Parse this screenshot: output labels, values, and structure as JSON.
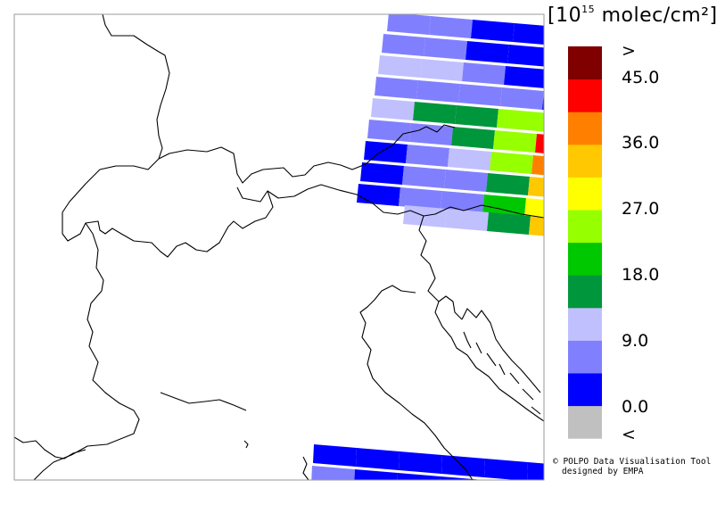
{
  "legend": {
    "unit": {
      "open": "[",
      "base": "10",
      "exp": "15",
      "rest": " molec/cm²",
      "close": "]"
    },
    "colors": [
      "#c0c0c0",
      "#0000ff",
      "#8080ff",
      "#c0c0ff",
      "#00963c",
      "#00c800",
      "#96ff00",
      "#ffff00",
      "#ffc800",
      "#ff8000",
      "#ff0000",
      "#800000"
    ],
    "labels": [
      ">",
      "45.0",
      "36.0",
      "27.0",
      "18.0",
      "9.0",
      "0.0",
      "<"
    ]
  },
  "credit": {
    "line1": "© POLPO Data Visualisation Tool",
    "line2": "designed by EMPA"
  },
  "swath_colors": {
    "blue": "#0000ff",
    "mid_blue": "#8080ff",
    "light_blue": "#c0c0ff",
    "dark_green": "#00963c",
    "green": "#00c800",
    "lime": "#96ff00",
    "yellow": "#ffff00",
    "amber": "#ffc800",
    "orange": "#ff8000",
    "red": "#ff0000"
  }
}
